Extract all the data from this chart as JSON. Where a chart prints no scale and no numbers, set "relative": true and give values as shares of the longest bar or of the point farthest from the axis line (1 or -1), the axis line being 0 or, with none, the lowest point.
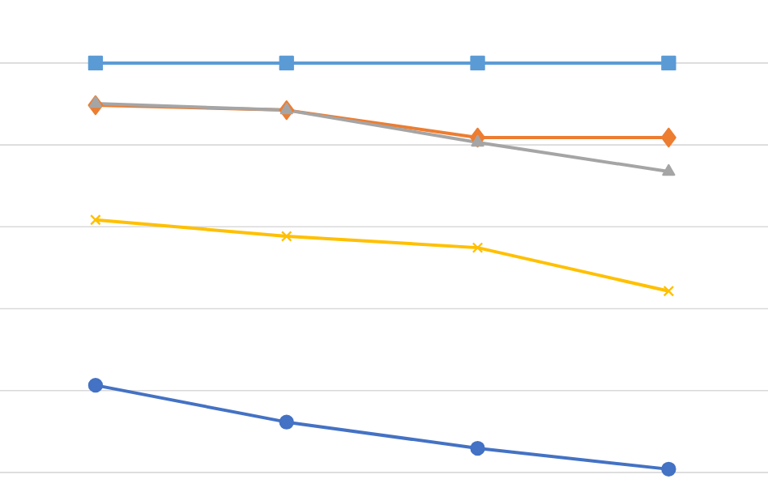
{
  "chart_data": {
    "type": "line",
    "relative": true,
    "categories": [
      null,
      null,
      null,
      null
    ],
    "grid": "y",
    "tick_labels": false,
    "line_style": "solid",
    "series": [
      {
        "color": "#5b9bd5",
        "marker": "square",
        "values": [
          1,
          1,
          1,
          1
        ]
      },
      {
        "color": "#ed7d31",
        "marker": "diamond",
        "values": [
          0.897,
          0.885,
          0.818,
          0.818
        ]
      },
      {
        "color": "#a5a5a5",
        "marker": "triangle",
        "values": [
          0.901,
          0.885,
          0.806,
          0.735
        ]
      },
      {
        "color": "#ffc000",
        "marker": "cross",
        "values": [
          0.617,
          0.577,
          0.549,
          0.443
        ]
      },
      {
        "color": "#4472c4",
        "marker": "circle",
        "values": [
          0.213,
          0.123,
          0.059,
          0.008
        ]
      }
    ]
  }
}
